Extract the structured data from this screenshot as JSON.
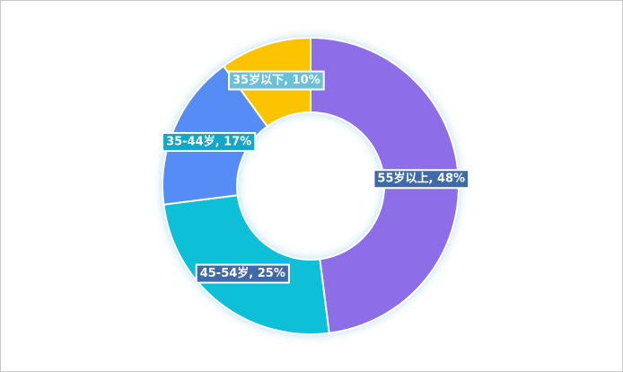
{
  "chart_data": {
    "type": "pie",
    "categories": [
      "55岁以上",
      "45-54岁",
      "35-44岁",
      "35岁以下"
    ],
    "values": [
      48,
      25,
      17,
      10
    ],
    "value_labels": [
      "55岁以上, 48%",
      "45-54岁, 25%",
      "35-44岁, 17%",
      "35岁以下, 10%"
    ],
    "colors": [
      "#8e6de9",
      "#07bfd7",
      "#568cf6",
      "#fcc400"
    ],
    "label_colors": [
      "#3f6aa8",
      "#3f6aa8",
      "#14a6c9",
      "#6cc0d8"
    ]
  }
}
